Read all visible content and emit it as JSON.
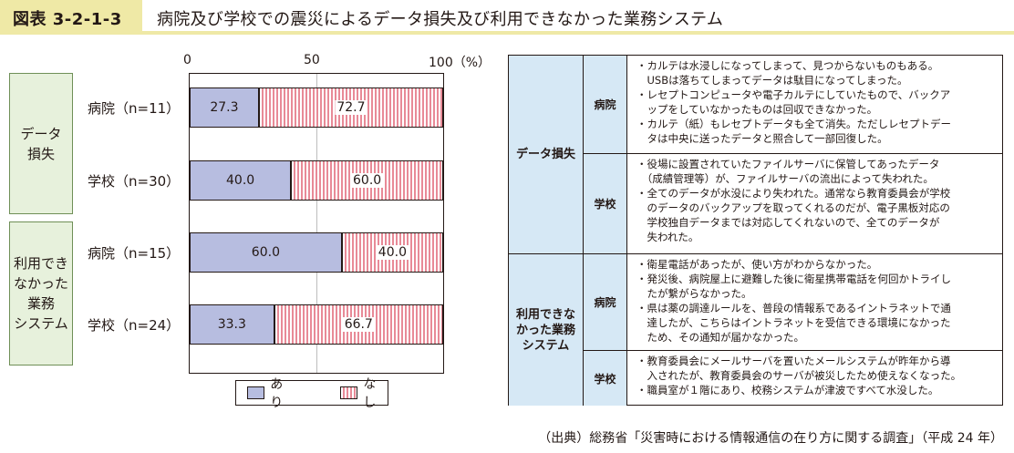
{
  "header": {
    "figure_label": "図表 3-2-1-3",
    "title": "病院及び学校での震災によるデータ損失及び利用できなかった業務システム"
  },
  "categories": {
    "data_loss": "データ\n損失",
    "unusable": "利用でき\nなかった\n業務\nシステム"
  },
  "chart_data": {
    "type": "bar",
    "stacked": true,
    "orientation": "horizontal",
    "categories": [
      "病院（n=11）",
      "学校（n=30）",
      "病院（n=15）",
      "学校（n=24）"
    ],
    "series": [
      {
        "name": "あり",
        "values": [
          27.3,
          40.0,
          60.0,
          33.3
        ]
      },
      {
        "name": "なし",
        "values": [
          72.7,
          60.0,
          40.0,
          66.7
        ]
      }
    ],
    "value_labels_ari": [
      "27.3",
      "40.0",
      "60.0",
      "33.3"
    ],
    "value_labels_nashi": [
      "72.7",
      "60.0",
      "40.0",
      "66.7"
    ],
    "xticks": [
      "0",
      "50",
      "100（%）"
    ],
    "xlim": [
      0,
      100
    ],
    "colors": {
      "ari": "#b7bde0",
      "nashi": "#e88a97"
    }
  },
  "legend": {
    "ari": "あり",
    "nashi": "なし"
  },
  "table": {
    "cat_data_loss": "データ損失",
    "cat_unusable": "利用できな\nかった業務\nシステム",
    "sub_hospital": "病院",
    "sub_school": "学校",
    "dl_hospital": "・カルテは水浸しになってしまって、見つからないものもある。\n　USBは落ちてしまってデータは駄目になってしまった。\n・レセプトコンピュータや電子カルテにしていたもので、バックア\n　ップをしていなかったものは回収できなかった。\n・カルテ（紙）もレセプトデータも全て消失。ただしレセプトデー\n　タは中央に送ったデータと照合して一部回復した。",
    "dl_school": "・役場に設置されていたファイルサーバに保管してあったデータ\n　（成績管理等）が、ファイルサーバの流出によって失われた。\n・全てのデータが水没により失われた。通常なら教育委員会が学校\n　のデータのバックアップを取ってくれるのだが、電子黒板対応の\n　学校独自データまでは対応してくれないので、全てのデータが\n　失われた。",
    "un_hospital": "・衛星電話があったが、使い方がわからなかった。\n・発災後、病院屋上に避難した後に衛星携帯電話を何回かトライし\n　たが繋がらなかった。\n・県は薬の調達ルールを、普段の情報系であるイントラネットで通\n　達したが、こちらはイントラネットを受信できる環境になかった\n　ため、その通知が届かなかった。",
    "un_school": "・教育委員会にメールサーバを置いたメールシステムが昨年から導\n　入されたが、教育委員会のサーバが被災したため使えなくなった。\n・職員室が１階にあり、校務システムが津波ですべて水没した。"
  },
  "source": "（出典）総務省「災害時における情報通信の在り方に関する調査」（平成 24 年）"
}
